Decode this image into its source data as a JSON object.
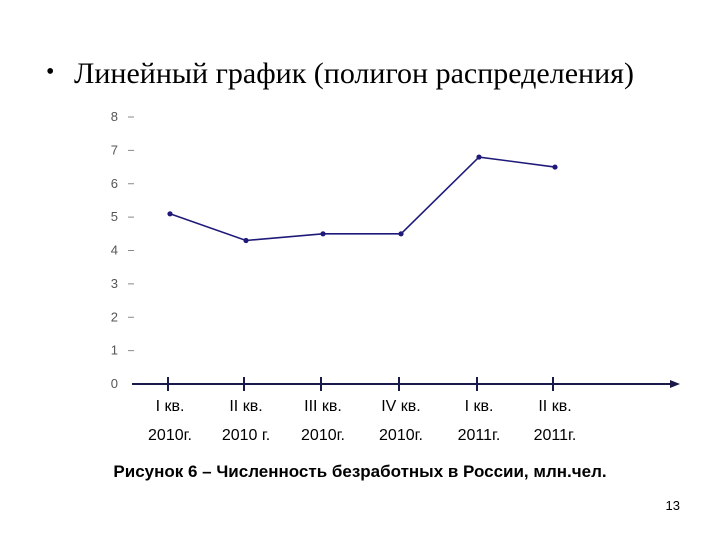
{
  "slide": {
    "bullet": "•",
    "heading": "Линейный график (полигон распределения)",
    "caption": "Рисунок 6 – Численность безработных в России, млн.чел.",
    "page_number": "13"
  },
  "chart_data": {
    "type": "line",
    "title": "",
    "xlabel": "",
    "ylabel": "",
    "categories": [
      [
        "I кв.",
        "2010г."
      ],
      [
        "II кв.",
        "2010 г."
      ],
      [
        "III кв.",
        "2010г."
      ],
      [
        "IV кв.",
        "2010г."
      ],
      [
        "I кв.",
        "2011г."
      ],
      [
        "II кв.",
        "2011г."
      ]
    ],
    "series": [
      {
        "values": [
          5.1,
          4.3,
          4.5,
          4.5,
          6.8,
          6.5
        ],
        "color": "#1f1a7a"
      }
    ],
    "ylim": [
      0,
      8
    ],
    "yticks": [
      "0",
      "1",
      "2",
      "3",
      "4",
      "5",
      "6",
      "7",
      "8"
    ],
    "grid": false,
    "legend": "none"
  }
}
